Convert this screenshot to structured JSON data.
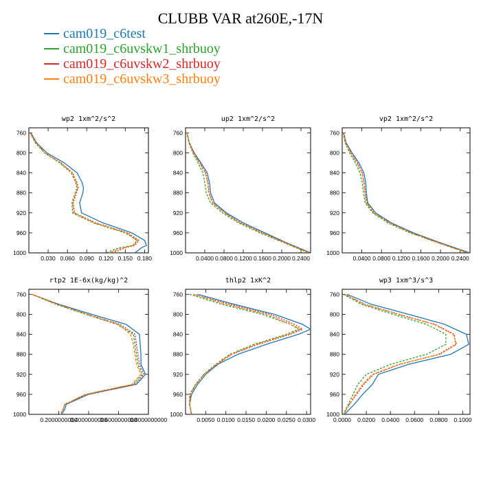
{
  "title": "CLUBB VAR at260E,-17N",
  "legend": [
    {
      "label": "cam019_c6test",
      "color": "#1f77b4"
    },
    {
      "label": "cam019_c6uvskw1_shrbuoy",
      "color": "#2ca02c"
    },
    {
      "label": "cam019_c6uvskw2_shrbuoy",
      "color": "#d62728"
    },
    {
      "label": "cam019_c6uvskw3_shrbuoy",
      "color": "#ff7f0e"
    }
  ],
  "chart_data": [
    {
      "type": "line",
      "title": "wp2  1xm^2/s^2",
      "ylim": [
        1000,
        750
      ],
      "xlim": [
        0.0,
        0.186
      ],
      "y_ticks": [
        "760",
        "800",
        "840",
        "880",
        "920",
        "960",
        "1000"
      ],
      "x_ticks": [
        0.03,
        0.06,
        0.09,
        0.12,
        0.15,
        0.18
      ],
      "x_tick_labels": [
        "0.030",
        "0.060",
        "0.090",
        "0.120",
        "0.150",
        "0.180"
      ],
      "y": [
        760,
        780,
        800,
        820,
        840,
        860,
        870,
        880,
        900,
        920,
        940,
        960,
        975,
        985,
        990,
        1000
      ],
      "series": [
        {
          "values": [
            0.003,
            0.012,
            0.028,
            0.055,
            0.075,
            0.083,
            0.085,
            0.084,
            0.079,
            0.082,
            0.115,
            0.16,
            0.18,
            0.183,
            0.175,
            0.165
          ]
        },
        {
          "values": [
            0.002,
            0.01,
            0.024,
            0.048,
            0.066,
            0.073,
            0.075,
            0.072,
            0.067,
            0.068,
            0.1,
            0.15,
            0.168,
            0.162,
            0.14,
            0.12
          ]
        },
        {
          "values": [
            0.002,
            0.011,
            0.025,
            0.05,
            0.068,
            0.075,
            0.077,
            0.074,
            0.069,
            0.071,
            0.104,
            0.154,
            0.171,
            0.165,
            0.15,
            0.13
          ]
        },
        {
          "values": [
            0.002,
            0.011,
            0.025,
            0.049,
            0.067,
            0.074,
            0.076,
            0.073,
            0.068,
            0.07,
            0.102,
            0.152,
            0.169,
            0.163,
            0.145,
            0.125
          ]
        }
      ]
    },
    {
      "type": "line",
      "title": "up2  1xm^2/s^2",
      "ylim": [
        1000,
        750
      ],
      "xlim": [
        0.0,
        0.26
      ],
      "y_ticks": [
        "760",
        "800",
        "840",
        "880",
        "920",
        "960",
        "1000"
      ],
      "x_ticks": [
        0.04,
        0.08,
        0.12,
        0.16,
        0.2,
        0.24
      ],
      "x_tick_labels": [
        "0.0400",
        "0.0800",
        "0.1200",
        "0.1600",
        "0.2000",
        "0.2400"
      ],
      "y": [
        760,
        780,
        800,
        820,
        840,
        860,
        880,
        900,
        920,
        940,
        960,
        980,
        1000
      ],
      "series": [
        {
          "values": [
            0.003,
            0.008,
            0.018,
            0.032,
            0.045,
            0.05,
            0.052,
            0.06,
            0.085,
            0.12,
            0.165,
            0.21,
            0.26
          ]
        },
        {
          "values": [
            0.003,
            0.007,
            0.015,
            0.026,
            0.036,
            0.04,
            0.043,
            0.052,
            0.077,
            0.11,
            0.155,
            0.205,
            0.255
          ]
        },
        {
          "values": [
            0.003,
            0.008,
            0.017,
            0.03,
            0.042,
            0.047,
            0.049,
            0.057,
            0.082,
            0.115,
            0.16,
            0.208,
            0.258
          ]
        },
        {
          "values": [
            0.003,
            0.008,
            0.016,
            0.029,
            0.041,
            0.046,
            0.048,
            0.056,
            0.081,
            0.113,
            0.158,
            0.207,
            0.257
          ]
        }
      ]
    },
    {
      "type": "line",
      "title": "vp2  1xm^2/s^2",
      "ylim": [
        1000,
        750
      ],
      "xlim": [
        0.0,
        0.26
      ],
      "y_ticks": [
        "760",
        "800",
        "840",
        "880",
        "920",
        "960",
        "1000"
      ],
      "x_ticks": [
        0.04,
        0.08,
        0.12,
        0.16,
        0.2,
        0.24
      ],
      "x_tick_labels": [
        "0.0400",
        "0.0800",
        "0.1200",
        "0.1600",
        "0.2000",
        "0.2400"
      ],
      "y": [
        760,
        780,
        800,
        820,
        840,
        860,
        880,
        900,
        920,
        940,
        960,
        980,
        1000
      ],
      "series": [
        {
          "values": [
            0.003,
            0.008,
            0.02,
            0.034,
            0.044,
            0.048,
            0.049,
            0.052,
            0.068,
            0.1,
            0.145,
            0.2,
            0.26
          ]
        },
        {
          "values": [
            0.002,
            0.006,
            0.015,
            0.027,
            0.036,
            0.041,
            0.043,
            0.047,
            0.062,
            0.093,
            0.138,
            0.195,
            0.255
          ]
        },
        {
          "values": [
            0.003,
            0.007,
            0.018,
            0.031,
            0.041,
            0.045,
            0.047,
            0.05,
            0.065,
            0.097,
            0.141,
            0.197,
            0.257
          ]
        },
        {
          "values": [
            0.003,
            0.007,
            0.017,
            0.03,
            0.04,
            0.044,
            0.046,
            0.049,
            0.064,
            0.096,
            0.14,
            0.196,
            0.256
          ]
        }
      ]
    },
    {
      "type": "line",
      "title": "rtp2  1E-6x(kg/kg)^2",
      "ylim": [
        1000,
        750
      ],
      "xlim": [
        0.0,
        0.8
      ],
      "y_ticks": [
        "760",
        "800",
        "840",
        "880",
        "920",
        "960",
        "1000"
      ],
      "x_ticks": [
        0.2,
        0.4,
        0.6,
        0.8
      ],
      "x_tick_labels": [
        "0.2000000000",
        "0.4000000000",
        "0.6000000000",
        "0.8000000000"
      ],
      "y": [
        760,
        780,
        800,
        820,
        840,
        860,
        880,
        900,
        920,
        940,
        960,
        980,
        990,
        1000
      ],
      "series": [
        {
          "values": [
            0.02,
            0.2,
            0.42,
            0.65,
            0.74,
            0.745,
            0.75,
            0.75,
            0.78,
            0.72,
            0.4,
            0.25,
            0.24,
            0.22
          ]
        },
        {
          "values": [
            0.02,
            0.18,
            0.38,
            0.59,
            0.7,
            0.71,
            0.72,
            0.73,
            0.76,
            0.7,
            0.38,
            0.24,
            0.23,
            0.21
          ]
        },
        {
          "values": [
            0.02,
            0.19,
            0.39,
            0.61,
            0.71,
            0.72,
            0.73,
            0.74,
            0.77,
            0.71,
            0.39,
            0.24,
            0.23,
            0.21
          ]
        },
        {
          "values": [
            0.02,
            0.19,
            0.39,
            0.6,
            0.68,
            0.7,
            0.71,
            0.72,
            0.75,
            0.69,
            0.38,
            0.24,
            0.23,
            0.21
          ]
        }
      ]
    },
    {
      "type": "line",
      "title": "thlp2  1xK^2",
      "ylim": [
        1000,
        750
      ],
      "xlim": [
        0.0,
        0.031
      ],
      "y_ticks": [
        "760",
        "800",
        "840",
        "880",
        "920",
        "960",
        "1000"
      ],
      "x_ticks": [
        0.005,
        0.01,
        0.015,
        0.02,
        0.025,
        0.03
      ],
      "x_tick_labels": [
        "0.0050",
        "0.0100",
        "0.0150",
        "0.0200",
        "0.0250",
        "0.0300"
      ],
      "y": [
        760,
        780,
        800,
        820,
        830,
        840,
        860,
        880,
        900,
        920,
        940,
        960,
        980,
        1000
      ],
      "series": [
        {
          "values": [
            0.003,
            0.012,
            0.022,
            0.029,
            0.031,
            0.028,
            0.02,
            0.013,
            0.008,
            0.005,
            0.003,
            0.0015,
            0.001,
            0.0015
          ]
        },
        {
          "values": [
            0.001,
            0.009,
            0.019,
            0.026,
            0.028,
            0.025,
            0.017,
            0.011,
            0.0075,
            0.0045,
            0.0025,
            0.001,
            0.001,
            0.0015
          ]
        },
        {
          "values": [
            0.002,
            0.011,
            0.021,
            0.027,
            0.029,
            0.026,
            0.018,
            0.0115,
            0.0078,
            0.0046,
            0.0026,
            0.0012,
            0.001,
            0.0015
          ]
        },
        {
          "values": [
            0.002,
            0.01,
            0.02,
            0.026,
            0.0285,
            0.0255,
            0.0175,
            0.0113,
            0.0077,
            0.0046,
            0.0026,
            0.0012,
            0.001,
            0.0015
          ]
        }
      ]
    },
    {
      "type": "line",
      "title": "wp3  1xm^3/s^3",
      "ylim": [
        1000,
        750
      ],
      "xlim": [
        0.0,
        0.106
      ],
      "y_ticks": [
        "760",
        "800",
        "840",
        "880",
        "920",
        "960",
        "1000"
      ],
      "x_ticks": [
        0.0,
        0.02,
        0.04,
        0.06,
        0.08,
        0.1
      ],
      "x_tick_labels": [
        "0.0000",
        "0.0200",
        "0.0400",
        "0.0600",
        "0.0800",
        "0.1000"
      ],
      "y": [
        760,
        780,
        800,
        820,
        840,
        860,
        880,
        900,
        920,
        940,
        960,
        980,
        1000
      ],
      "series": [
        {
          "values": [
            0.004,
            0.024,
            0.055,
            0.085,
            0.103,
            0.105,
            0.09,
            0.055,
            0.03,
            0.025,
            0.017,
            0.01,
            0.002
          ]
        },
        {
          "values": [
            0.001,
            0.016,
            0.042,
            0.07,
            0.086,
            0.086,
            0.07,
            0.04,
            0.02,
            0.013,
            0.009,
            0.005,
            0.001
          ]
        },
        {
          "values": [
            0.002,
            0.019,
            0.047,
            0.077,
            0.093,
            0.094,
            0.08,
            0.048,
            0.026,
            0.018,
            0.012,
            0.006,
            0.001
          ]
        },
        {
          "values": [
            0.002,
            0.018,
            0.046,
            0.076,
            0.092,
            0.095,
            0.081,
            0.047,
            0.025,
            0.017,
            0.011,
            0.006,
            0.001
          ]
        }
      ]
    }
  ]
}
